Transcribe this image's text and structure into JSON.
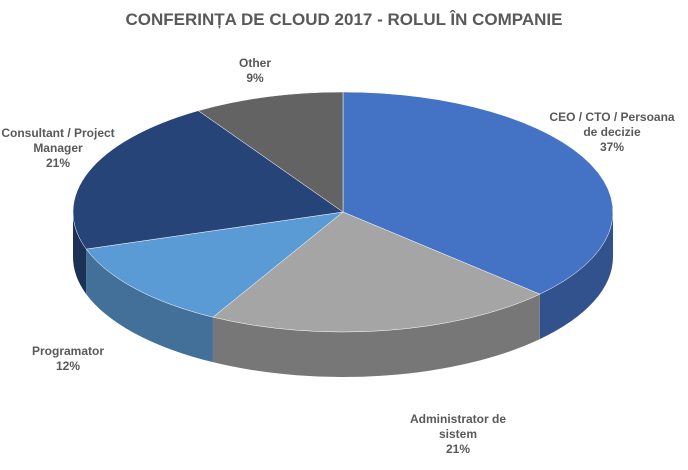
{
  "chart_data": {
    "type": "pie3d",
    "title": "CONFERINȚA DE CLOUD 2017 - ROLUL ÎN COMPANIE",
    "categories": [
      "CEO / CTO / Persoana de decizie",
      "Administrator de sistem",
      "Programator",
      "Consultant / Project Manager",
      "Other"
    ],
    "values": [
      37,
      21,
      12,
      21,
      9
    ],
    "value_labels": [
      "37%",
      "21%",
      "12%",
      "21%",
      "9%"
    ],
    "colors": [
      "#4472c4",
      "#a5a5a5",
      "#5b9bd5",
      "#264478",
      "#636363"
    ]
  }
}
